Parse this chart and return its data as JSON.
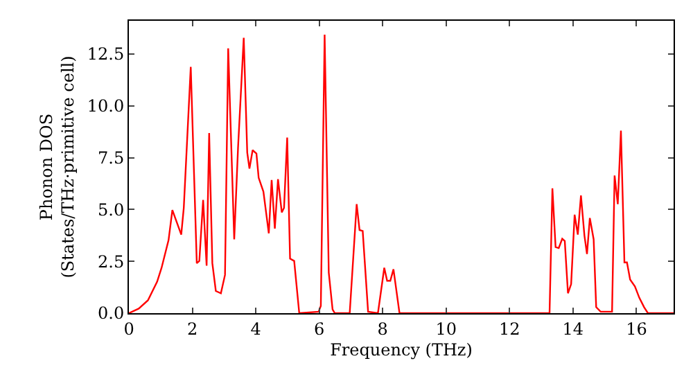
{
  "chart_data": {
    "type": "line",
    "xlabel": "Frequency (THz)",
    "ylabel": "Phonon DOS\n(States/THz·primitive cell)",
    "x": [
      0,
      0.31,
      0.6,
      0.89,
      1.03,
      1.25,
      1.37,
      1.65,
      1.73,
      1.95,
      2.14,
      2.22,
      2.34,
      2.45,
      2.53,
      2.63,
      2.74,
      2.9,
      3.03,
      3.13,
      3.32,
      3.44,
      3.62,
      3.73,
      3.8,
      3.9,
      4.02,
      4.09,
      4.24,
      4.41,
      4.5,
      4.6,
      4.7,
      4.82,
      4.89,
      4.99,
      5.08,
      5.21,
      5.37,
      5.98,
      6.05,
      6.17,
      6.3,
      6.42,
      6.49,
      6.96,
      7.18,
      7.27,
      7.37,
      7.54,
      7.85,
      8.05,
      8.14,
      8.24,
      8.34,
      8.53,
      13.26,
      13.35,
      13.45,
      13.55,
      13.66,
      13.74,
      13.84,
      13.94,
      14.05,
      14.15,
      14.25,
      14.36,
      14.44,
      14.53,
      14.65,
      14.73,
      14.87,
      15.23,
      15.31,
      15.41,
      15.51,
      15.62,
      15.7,
      15.8,
      15.95,
      16.09,
      16.24,
      16.36,
      17.17
    ],
    "series": [
      {
        "color": "#ff0000",
        "values": [
          0,
          0.22,
          0.62,
          1.52,
          2.19,
          3.52,
          4.97,
          3.79,
          5.08,
          11.88,
          2.41,
          2.52,
          5.46,
          2.29,
          8.69,
          2.41,
          1.07,
          0.96,
          1.85,
          12.77,
          3.56,
          7.97,
          13.28,
          7.75,
          6.97,
          7.86,
          7.7,
          6.53,
          5.86,
          3.85,
          6.42,
          4.08,
          6.46,
          4.86,
          5.08,
          8.47,
          2.63,
          2.52,
          0,
          0.07,
          0.35,
          13.43,
          1.96,
          0.18,
          0,
          0,
          5.26,
          4.01,
          3.96,
          0.07,
          0,
          2.19,
          1.56,
          1.56,
          2.12,
          0,
          0,
          6.02,
          3.19,
          3.14,
          3.59,
          3.48,
          0.96,
          1.4,
          4.75,
          3.79,
          5.68,
          3.74,
          2.85,
          4.59,
          3.56,
          0.29,
          0.07,
          0.07,
          6.64,
          5.26,
          8.8,
          2.45,
          2.45,
          1.62,
          1.29,
          0.74,
          0.29,
          0,
          0
        ]
      }
    ],
    "xlim": [
      0,
      17.17
    ],
    "ylim": [
      0,
      14.1
    ],
    "xticks": [
      0,
      2,
      4,
      6,
      8,
      10,
      12,
      14,
      16
    ],
    "yticks": [
      {
        "value": 0,
        "label": "0.0"
      },
      {
        "value": 2.5,
        "label": "2.5"
      },
      {
        "value": 5,
        "label": "5.0"
      },
      {
        "value": 7.5,
        "label": "7.5"
      },
      {
        "value": 10,
        "label": "10.0"
      },
      {
        "value": 12.5,
        "label": "12.5"
      }
    ],
    "marker": "none",
    "line_style": "solid"
  }
}
